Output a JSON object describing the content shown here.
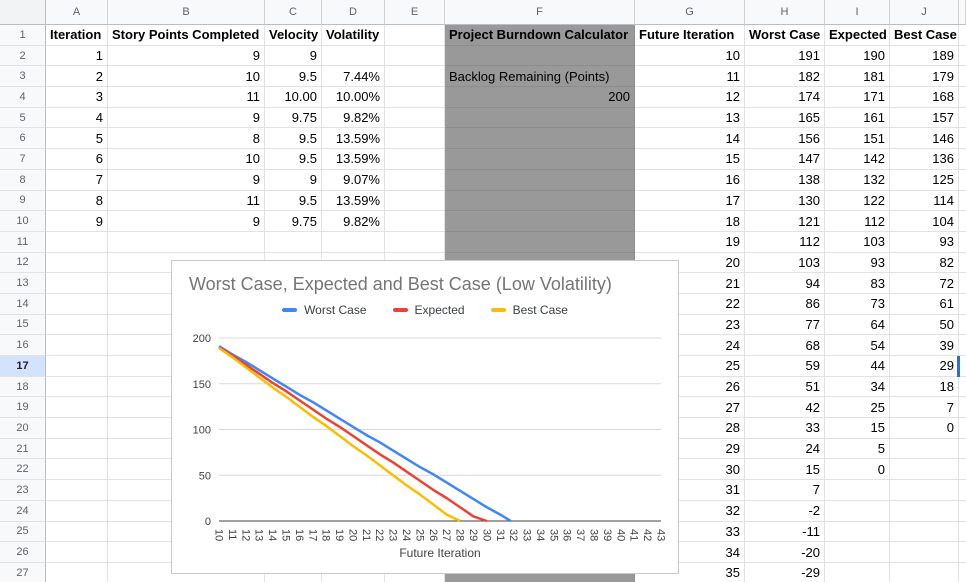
{
  "sheet": {
    "column_letters": [
      "A",
      "B",
      "C",
      "D",
      "E",
      "F",
      "G",
      "H",
      "I",
      "J"
    ],
    "row_count": 27,
    "selected_row": 17,
    "left_table": {
      "headers": [
        "Iteration",
        "Story Points Completed",
        "Velocity",
        "Volatility"
      ],
      "rows": [
        [
          "1",
          "9",
          "9",
          ""
        ],
        [
          "2",
          "10",
          "9.5",
          "7.44%"
        ],
        [
          "3",
          "11",
          "10.00",
          "10.00%"
        ],
        [
          "4",
          "9",
          "9.75",
          "9.82%"
        ],
        [
          "5",
          "8",
          "9.5",
          "13.59%"
        ],
        [
          "6",
          "10",
          "9.5",
          "13.59%"
        ],
        [
          "7",
          "9",
          "9",
          "9.07%"
        ],
        [
          "8",
          "11",
          "9.5",
          "13.59%"
        ],
        [
          "9",
          "9",
          "9.75",
          "9.82%"
        ]
      ]
    },
    "calculator": {
      "title": "Project Burndown Calculator",
      "label": "Backlog Remaining (Points)",
      "value": "200",
      "fill_color": "#999999"
    },
    "right_table": {
      "headers": [
        "Future Iteration",
        "Worst Case",
        "Expected",
        "Best Case"
      ],
      "rows": [
        [
          "10",
          "191",
          "190",
          "189"
        ],
        [
          "11",
          "182",
          "181",
          "179"
        ],
        [
          "12",
          "174",
          "171",
          "168"
        ],
        [
          "13",
          "165",
          "161",
          "157"
        ],
        [
          "14",
          "156",
          "151",
          "146"
        ],
        [
          "15",
          "147",
          "142",
          "136"
        ],
        [
          "16",
          "138",
          "132",
          "125"
        ],
        [
          "17",
          "130",
          "122",
          "114"
        ],
        [
          "18",
          "121",
          "112",
          "104"
        ],
        [
          "19",
          "112",
          "103",
          "93"
        ],
        [
          "20",
          "103",
          "93",
          "82"
        ],
        [
          "21",
          "94",
          "83",
          "72"
        ],
        [
          "22",
          "86",
          "73",
          "61"
        ],
        [
          "23",
          "77",
          "64",
          "50"
        ],
        [
          "24",
          "68",
          "54",
          "39"
        ],
        [
          "25",
          "59",
          "44",
          "29"
        ],
        [
          "26",
          "51",
          "34",
          "18"
        ],
        [
          "27",
          "42",
          "25",
          "7"
        ],
        [
          "28",
          "33",
          "15",
          "0"
        ],
        [
          "29",
          "24",
          "5",
          ""
        ],
        [
          "30",
          "15",
          "0",
          ""
        ],
        [
          "31",
          "7",
          "",
          ""
        ],
        [
          "32",
          "-2",
          "",
          ""
        ],
        [
          "33",
          "-11",
          "",
          ""
        ],
        [
          "34",
          "-20",
          "",
          ""
        ],
        [
          "35",
          "-29",
          "",
          ""
        ]
      ]
    }
  },
  "chart_data": {
    "type": "line",
    "title": "Worst Case, Expected and Best Case (Low Volatility)",
    "xlabel": "Future Iteration",
    "ylabel": "",
    "x": [
      10,
      11,
      12,
      13,
      14,
      15,
      16,
      17,
      18,
      19,
      20,
      21,
      22,
      23,
      24,
      25,
      26,
      27,
      28,
      29,
      30,
      31,
      32,
      33,
      34,
      35,
      36,
      37,
      38,
      39,
      40,
      41,
      42,
      43
    ],
    "series": [
      {
        "name": "Worst Case",
        "color": "#4285f4",
        "values": [
          191,
          182,
          174,
          165,
          156,
          147,
          138,
          130,
          121,
          112,
          103,
          94,
          86,
          77,
          68,
          59,
          51,
          42,
          33,
          24,
          15,
          7,
          -2,
          -11,
          -20,
          -29
        ]
      },
      {
        "name": "Expected",
        "color": "#ea4335",
        "values": [
          190,
          181,
          171,
          161,
          151,
          142,
          132,
          122,
          112,
          103,
          93,
          83,
          73,
          64,
          54,
          44,
          34,
          25,
          15,
          5,
          0
        ]
      },
      {
        "name": "Best Case",
        "color": "#fbbc04",
        "values": [
          189,
          179,
          168,
          157,
          146,
          136,
          125,
          114,
          104,
          93,
          82,
          72,
          61,
          50,
          39,
          29,
          18,
          7,
          0
        ]
      }
    ],
    "ylim": [
      0,
      200
    ],
    "yticks": [
      0,
      50,
      100,
      150,
      200
    ],
    "legend_position": "top",
    "grid": true,
    "x_tick_rotation": 90,
    "axis_text_color": "#424242",
    "grid_color": "#d9d9d9",
    "baseline_color": "#424242",
    "title_color": "#757575"
  }
}
